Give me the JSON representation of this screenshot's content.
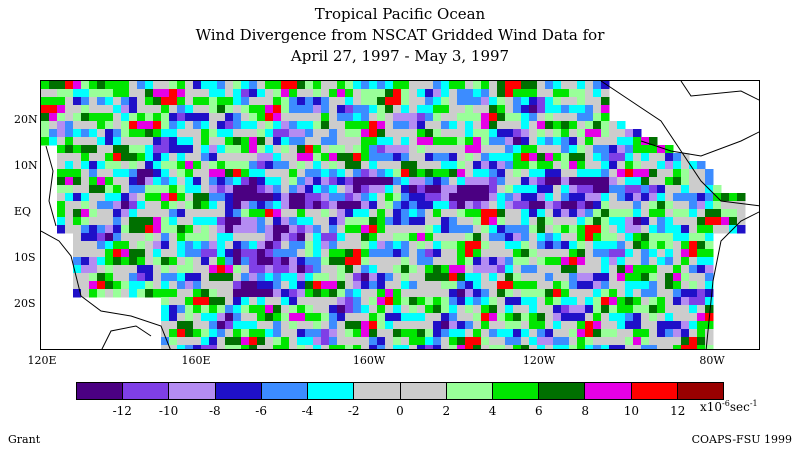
{
  "title": {
    "line1": "Tropical Pacific Ocean",
    "line2": "Wind Divergence from NSCAT Gridded Wind Data for",
    "line3": "April 27, 1997 - May 3, 1997"
  },
  "map": {
    "lat_labels": [
      "20N",
      "10N",
      "EQ",
      "10S",
      "20S"
    ],
    "lon_labels": [
      "120E",
      "160E",
      "160W",
      "120W",
      "80W"
    ],
    "land_color": "#ffffff",
    "coastline_color": "#000000",
    "region": "Tropical Pacific Ocean"
  },
  "colorbar": {
    "colors": [
      "#4b0082",
      "#7f3fe6",
      "#b48cf2",
      "#1f10c8",
      "#3c8cff",
      "#00ffff",
      "#cccccc",
      "#cccccc",
      "#99ff99",
      "#00e600",
      "#007000",
      "#e600e6",
      "#ff0000",
      "#990000"
    ],
    "tick_labels": [
      "-12",
      "-10",
      "-8",
      "-6",
      "-4",
      "-2",
      "0",
      "2",
      "4",
      "6",
      "8",
      "10",
      "12"
    ],
    "units_prefix": "x10",
    "units_exponent": "-6",
    "units_suffix": "sec",
    "units_suffix_exponent": "-1"
  },
  "footer": {
    "left": "Grant",
    "right": "COAPS-FSU 1999"
  }
}
